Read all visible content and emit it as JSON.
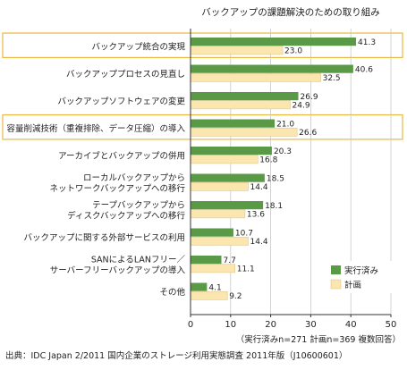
{
  "chart_data": {
    "type": "bar",
    "orientation": "horizontal",
    "title": "バックアップの課題解決のための取り組み",
    "categories": [
      [
        "バックアップ統合の実現"
      ],
      [
        "バックアッププロセスの見直し"
      ],
      [
        "バックアップソフトウェアの変更"
      ],
      [
        "容量削減技術（重複排除、データ圧縮）の導入"
      ],
      [
        "アーカイブとバックアップの併用"
      ],
      [
        "ローカルバックアップから",
        "ネットワークバックアップへの移行"
      ],
      [
        "テープバックアップから",
        "ディスクバックアップへの移行"
      ],
      [
        "バックアップに関する外部サービスの利用"
      ],
      [
        "SANによるLANフリー／",
        "サーバーフリーバックアップの導入"
      ],
      [
        "その他"
      ]
    ],
    "highlighted": [
      0,
      3
    ],
    "series": [
      {
        "name": "実行済み",
        "color": "#5a9a46",
        "values": [
          41.3,
          40.6,
          26.9,
          21.0,
          20.3,
          18.5,
          18.1,
          10.7,
          7.7,
          4.1
        ]
      },
      {
        "name": "計画",
        "color": "#fbe6b0",
        "values": [
          23.0,
          32.5,
          24.9,
          26.6,
          16.8,
          14.4,
          13.6,
          14.4,
          11.1,
          9.2
        ]
      }
    ],
    "xlim": [
      0,
      50
    ],
    "xticks": [
      0,
      10,
      20,
      30,
      40,
      50
    ],
    "value_labels": [
      [
        "41.3",
        "40.6",
        "26.9",
        "21.0",
        "20.3",
        "18.5",
        "18.1",
        "10.7",
        "7.7",
        "4.1"
      ],
      [
        "23.0",
        "32.5",
        "24.9",
        "26.6",
        "16.8",
        "14.4",
        "13.6",
        "14.4",
        "11.1",
        "9.2"
      ]
    ],
    "legend_position": "bottom-right",
    "highlight_color": "#e8b840",
    "note": "（実行済みn=271 計画n=369 複数回答）",
    "source": "出典：IDC Japan 2/2011 国内企業のストレージ利用実態調査 2011年版（J10600601）"
  }
}
